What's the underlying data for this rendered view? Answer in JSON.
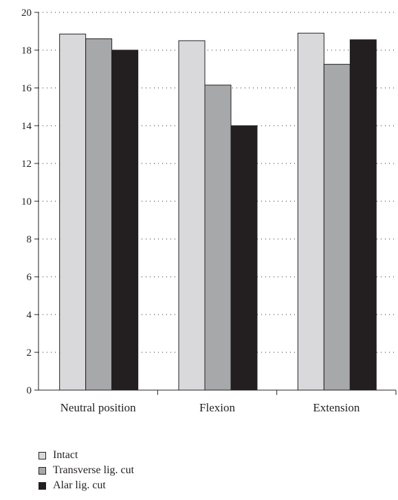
{
  "chart_data": {
    "type": "bar",
    "categories": [
      "Neutral position",
      "Flexion",
      "Extension"
    ],
    "series": [
      {
        "name": "Intact",
        "color": "#d9d9db",
        "values": [
          18.85,
          18.5,
          18.9
        ]
      },
      {
        "name": "Transverse lig. cut",
        "color": "#a7a8aa",
        "values": [
          18.6,
          16.15,
          17.25
        ]
      },
      {
        "name": "Alar lig. cut",
        "color": "#231f20",
        "values": [
          18.0,
          14.0,
          18.55
        ]
      }
    ],
    "title": "",
    "xlabel": "",
    "ylabel": "",
    "ylim": [
      0,
      20
    ],
    "yticks": [
      0,
      2,
      4,
      6,
      8,
      10,
      12,
      14,
      16,
      18,
      20
    ],
    "grid": "horizontal-dotted",
    "legend_position": "bottom-left"
  }
}
